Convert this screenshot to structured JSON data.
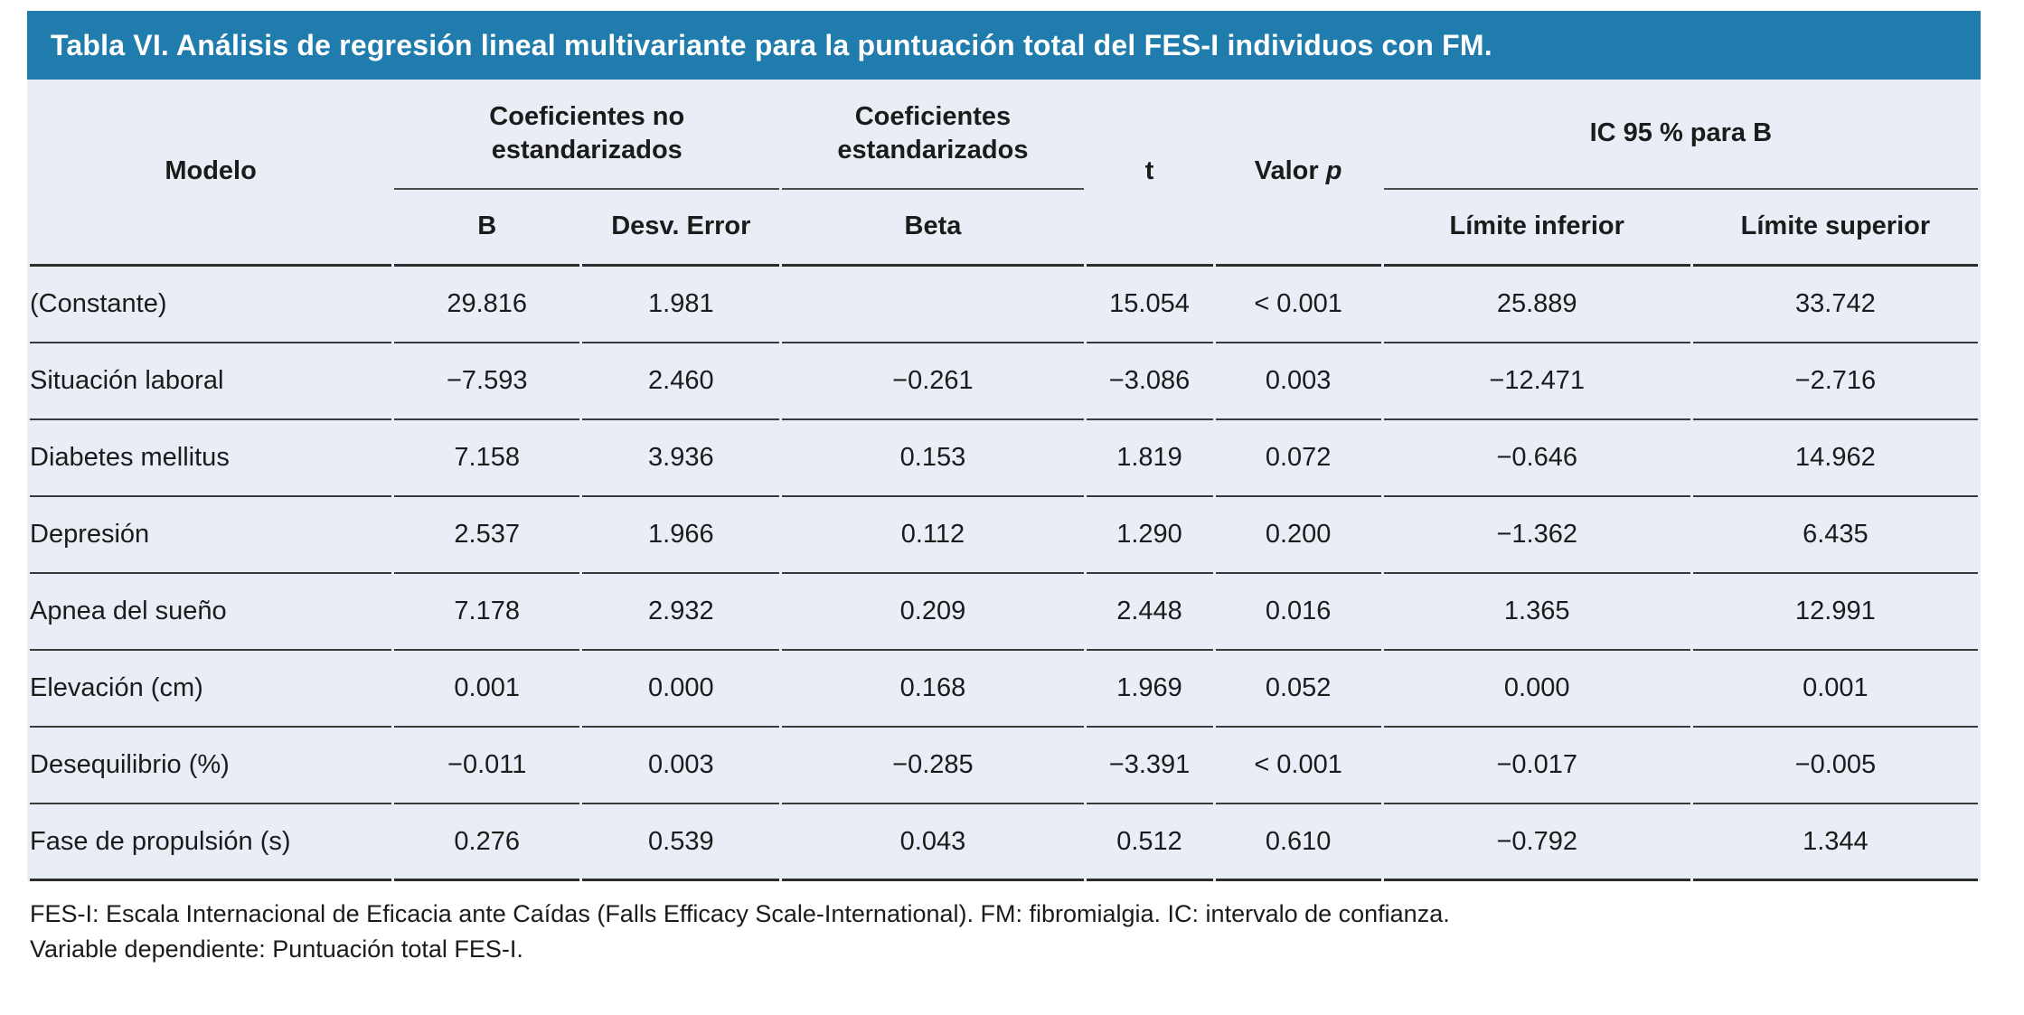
{
  "title": "Tabla VI. Análisis de regresión lineal multivariante para la puntuación total del FES-I individuos con FM.",
  "colors": {
    "title_bar_blue": "#1f7cad",
    "title_text": "#ffffff",
    "table_background": "#e9eef6",
    "rule_dark": "#2d2d2d",
    "rule_row": "#3a3a3a",
    "rule_group_underline": "#4d4d4d",
    "body_text": "#1b1b1b"
  },
  "table": {
    "headers": {
      "modelo": "Modelo",
      "coef_no_estandarizados": "Coeficientes no estandarizados",
      "coef_estandarizados": "Coeficientes estandarizados",
      "t": "t",
      "valor_p_prefix": "Valor ",
      "valor_p_italic": "p",
      "ic95": "IC 95 % para B",
      "b": "B",
      "desv_error": "Desv. Error",
      "beta": "Beta",
      "limite_inferior": "Límite inferior",
      "limite_superior": "Límite superior"
    },
    "rows": [
      {
        "modelo": "(Constante)",
        "b": "29.816",
        "desv_error": "1.981",
        "beta": "",
        "t": "15.054",
        "valor_p": "< 0.001",
        "limite_inferior": "25.889",
        "limite_superior": "33.742"
      },
      {
        "modelo": "Situación laboral",
        "b": "−7.593",
        "desv_error": "2.460",
        "beta": "−0.261",
        "t": "−3.086",
        "valor_p": "0.003",
        "limite_inferior": "−12.471",
        "limite_superior": "−2.716"
      },
      {
        "modelo": "Diabetes mellitus",
        "b": "7.158",
        "desv_error": "3.936",
        "beta": "0.153",
        "t": "1.819",
        "valor_p": "0.072",
        "limite_inferior": "−0.646",
        "limite_superior": "14.962"
      },
      {
        "modelo": "Depresión",
        "b": "2.537",
        "desv_error": "1.966",
        "beta": "0.112",
        "t": "1.290",
        "valor_p": "0.200",
        "limite_inferior": "−1.362",
        "limite_superior": "6.435"
      },
      {
        "modelo": "Apnea del sueño",
        "b": "7.178",
        "desv_error": "2.932",
        "beta": "0.209",
        "t": "2.448",
        "valor_p": "0.016",
        "limite_inferior": "1.365",
        "limite_superior": "12.991"
      },
      {
        "modelo": "Elevación (cm)",
        "b": "0.001",
        "desv_error": "0.000",
        "beta": "0.168",
        "t": "1.969",
        "valor_p": "0.052",
        "limite_inferior": "0.000",
        "limite_superior": "0.001"
      },
      {
        "modelo": "Desequilibrio (%)",
        "b": "−0.011",
        "desv_error": "0.003",
        "beta": "−0.285",
        "t": "−3.391",
        "valor_p": "< 0.001",
        "limite_inferior": "−0.017",
        "limite_superior": "−0.005"
      },
      {
        "modelo": "Fase de propulsión (s)",
        "b": "0.276",
        "desv_error": "0.539",
        "beta": "0.043",
        "t": "0.512",
        "valor_p": "0.610",
        "limite_inferior": "−0.792",
        "limite_superior": "1.344"
      }
    ]
  },
  "footnotes": [
    "FES-I: Escala Internacional de Eficacia ante Caídas (Falls Efficacy Scale-International). FM: fibromialgia. IC: intervalo de confianza.",
    "Variable dependiente: Puntuación total FES-I."
  ]
}
